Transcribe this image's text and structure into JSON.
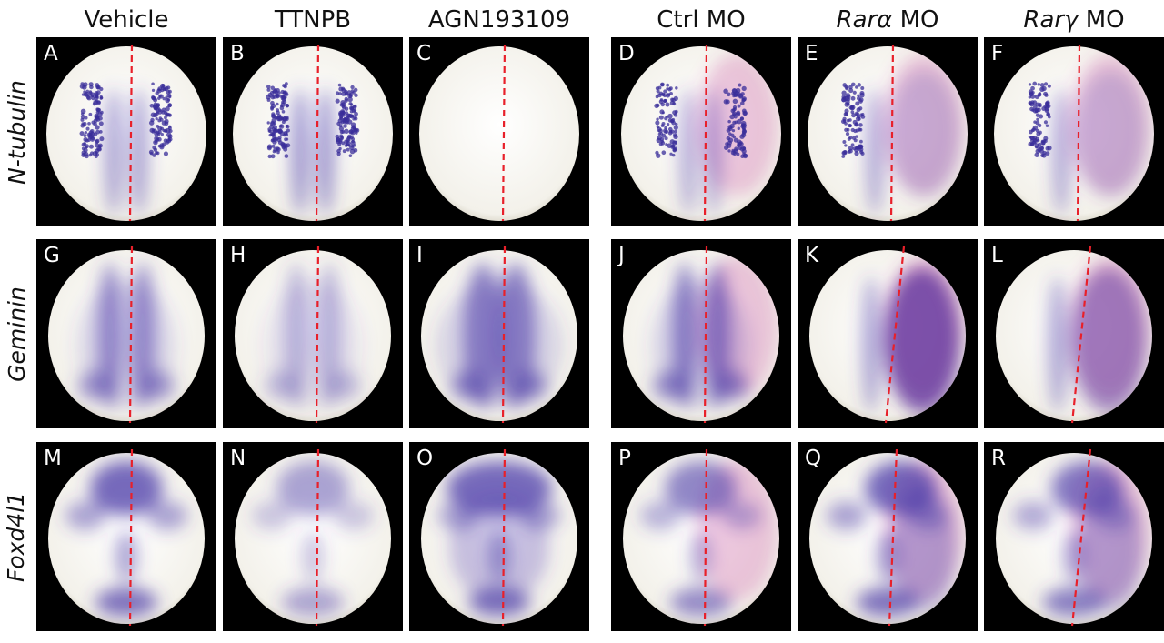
{
  "columns": [
    {
      "prefix": "",
      "italic": "",
      "suffix": "Vehicle"
    },
    {
      "prefix": "",
      "italic": "",
      "suffix": "TTNPB"
    },
    {
      "prefix": "",
      "italic": "",
      "suffix": "AGN193109"
    },
    {
      "prefix": "",
      "italic": "",
      "suffix": "Ctrl MO"
    },
    {
      "prefix": "",
      "italic": "Rarα",
      "suffix": " MO"
    },
    {
      "prefix": "",
      "italic": "Rarγ",
      "suffix": " MO"
    }
  ],
  "rows": [
    {
      "label": "N-tubulin"
    },
    {
      "label": "Geminin"
    },
    {
      "label": "Foxd4l1"
    }
  ],
  "panels": [
    {
      "letter": "A",
      "gene": "N-tubulin",
      "pattern": "dots",
      "intensity": 1.0,
      "pink": 0
    },
    {
      "letter": "B",
      "gene": "N-tubulin",
      "pattern": "dots",
      "intensity": 1.15,
      "pink": 0
    },
    {
      "letter": "C",
      "gene": "N-tubulin",
      "pattern": "none",
      "intensity": 0.0,
      "pink": 0
    },
    {
      "letter": "D",
      "gene": "N-tubulin",
      "pattern": "dots",
      "intensity": 0.85,
      "pink": 1
    },
    {
      "letter": "E",
      "gene": "N-tubulin",
      "pattern": "dots-left",
      "intensity": 0.9,
      "pink": 1
    },
    {
      "letter": "F",
      "gene": "N-tubulin",
      "pattern": "dots-left",
      "intensity": 0.9,
      "pink": 1
    },
    {
      "letter": "G",
      "gene": "Geminin",
      "pattern": "columns",
      "intensity": 0.9,
      "pink": 0
    },
    {
      "letter": "H",
      "gene": "Geminin",
      "pattern": "columns",
      "intensity": 0.55,
      "pink": 0
    },
    {
      "letter": "I",
      "gene": "Geminin",
      "pattern": "columns-wide",
      "intensity": 1.0,
      "pink": 0
    },
    {
      "letter": "J",
      "gene": "Geminin",
      "pattern": "columns",
      "intensity": 1.0,
      "pink": 1
    },
    {
      "letter": "K",
      "gene": "Geminin",
      "pattern": "right-strong",
      "intensity": 1.0,
      "pink": 1
    },
    {
      "letter": "L",
      "gene": "Geminin",
      "pattern": "right-strong",
      "intensity": 0.7,
      "pink": 1
    },
    {
      "letter": "M",
      "gene": "Foxd4l1",
      "pattern": "anterior",
      "intensity": 1.0,
      "pink": 0
    },
    {
      "letter": "N",
      "gene": "Foxd4l1",
      "pattern": "anterior",
      "intensity": 0.6,
      "pink": 0
    },
    {
      "letter": "O",
      "gene": "Foxd4l1",
      "pattern": "anterior-wide",
      "intensity": 1.0,
      "pink": 0
    },
    {
      "letter": "P",
      "gene": "Foxd4l1",
      "pattern": "anterior",
      "intensity": 0.8,
      "pink": 1
    },
    {
      "letter": "Q",
      "gene": "Foxd4l1",
      "pattern": "anterior-right",
      "intensity": 1.0,
      "pink": 1
    },
    {
      "letter": "R",
      "gene": "Foxd4l1",
      "pattern": "anterior-right",
      "intensity": 0.9,
      "pink": 1
    }
  ],
  "colors": {
    "background": "#000000",
    "embryo": "#f3f1ea",
    "stain": "#4b3aa8",
    "pink": "#c4409a",
    "midline": "#e8202a",
    "label": "#ffffff"
  }
}
